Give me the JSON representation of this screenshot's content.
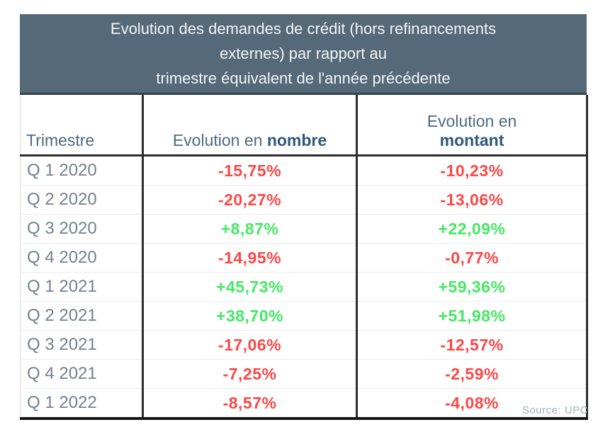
{
  "colors": {
    "title_bg": "#566979",
    "title_text": "#f2f5f8",
    "header_text": "#4e6a80",
    "quarter_text": "#71818f",
    "positive": "#45e864",
    "negative": "#fb4747",
    "grid_dark": "#2d2d2d",
    "source_text": "#9fb2c0"
  },
  "title": {
    "line1": "Evolution des demandes de crédit (hors refinancements",
    "line2": "externes) par rapport au",
    "line3": "trimestre équivalent de l'année précédente"
  },
  "table": {
    "headers": {
      "trimestre": "Trimestre",
      "nombre_prefix": "Evolution en ",
      "nombre_bold": "nombre",
      "montant_line1": "Evolution en",
      "montant_bold": "montant"
    },
    "rows": [
      {
        "quarter": "Q 1 2020",
        "nombre": "-15,75%",
        "montant": "-10,23%"
      },
      {
        "quarter": "Q 2 2020",
        "nombre": "-20,27%",
        "montant": "-13,06%"
      },
      {
        "quarter": "Q 3 2020",
        "nombre": "+8,87%",
        "montant": "+22,09%"
      },
      {
        "quarter": "Q 4 2020",
        "nombre": "-14,95%",
        "montant": "-0,77%"
      },
      {
        "quarter": "Q 1 2021",
        "nombre": "+45,73%",
        "montant": "+59,36%"
      },
      {
        "quarter": "Q 2 2021",
        "nombre": "+38,70%",
        "montant": "+51,98%"
      },
      {
        "quarter": "Q 3 2021",
        "nombre": "-17,06%",
        "montant": "-12,57%"
      },
      {
        "quarter": "Q 4 2021",
        "nombre": "-7,25%",
        "montant": "-2,59%"
      },
      {
        "quarter": "Q 1 2022",
        "nombre": "-8,57%",
        "montant": "-4,08%"
      }
    ]
  },
  "footer": {
    "source": "Source: UPC"
  },
  "chart_data": {
    "type": "table",
    "title": "Evolution des demandes de crédit (hors refinancements externes) par rapport au trimestre équivalent de l'année précédente",
    "columns": [
      "Trimestre",
      "Evolution en nombre",
      "Evolution en montant"
    ],
    "rows": [
      [
        "Q 1 2020",
        "-15,75%",
        "-10,23%"
      ],
      [
        "Q 2 2020",
        "-20,27%",
        "-13,06%"
      ],
      [
        "Q 3 2020",
        "+8,87%",
        "+22,09%"
      ],
      [
        "Q 4 2020",
        "-14,95%",
        "-0,77%"
      ],
      [
        "Q 1 2021",
        "+45,73%",
        "+59,36%"
      ],
      [
        "Q 2 2021",
        "+38,70%",
        "+51,98%"
      ],
      [
        "Q 3 2021",
        "-17,06%",
        "-12,57%"
      ],
      [
        "Q 4 2021",
        "-7,25%",
        "-2,59%"
      ],
      [
        "Q 1 2022",
        "-8,57%",
        "-4,08%"
      ]
    ],
    "series": [
      {
        "name": "Evolution en nombre (%)",
        "values": [
          -15.75,
          -20.27,
          8.87,
          -14.95,
          45.73,
          38.7,
          -17.06,
          -7.25,
          -8.57
        ]
      },
      {
        "name": "Evolution en montant (%)",
        "values": [
          -10.23,
          -13.06,
          22.09,
          -0.77,
          59.36,
          51.98,
          -12.57,
          -2.59,
          -4.08
        ]
      }
    ],
    "categories": [
      "Q 1 2020",
      "Q 2 2020",
      "Q 3 2020",
      "Q 4 2020",
      "Q 1 2021",
      "Q 2 2021",
      "Q 3 2021",
      "Q 4 2021",
      "Q 1 2022"
    ],
    "color_coding": "negative values red, positive values green",
    "source": "UPC"
  }
}
